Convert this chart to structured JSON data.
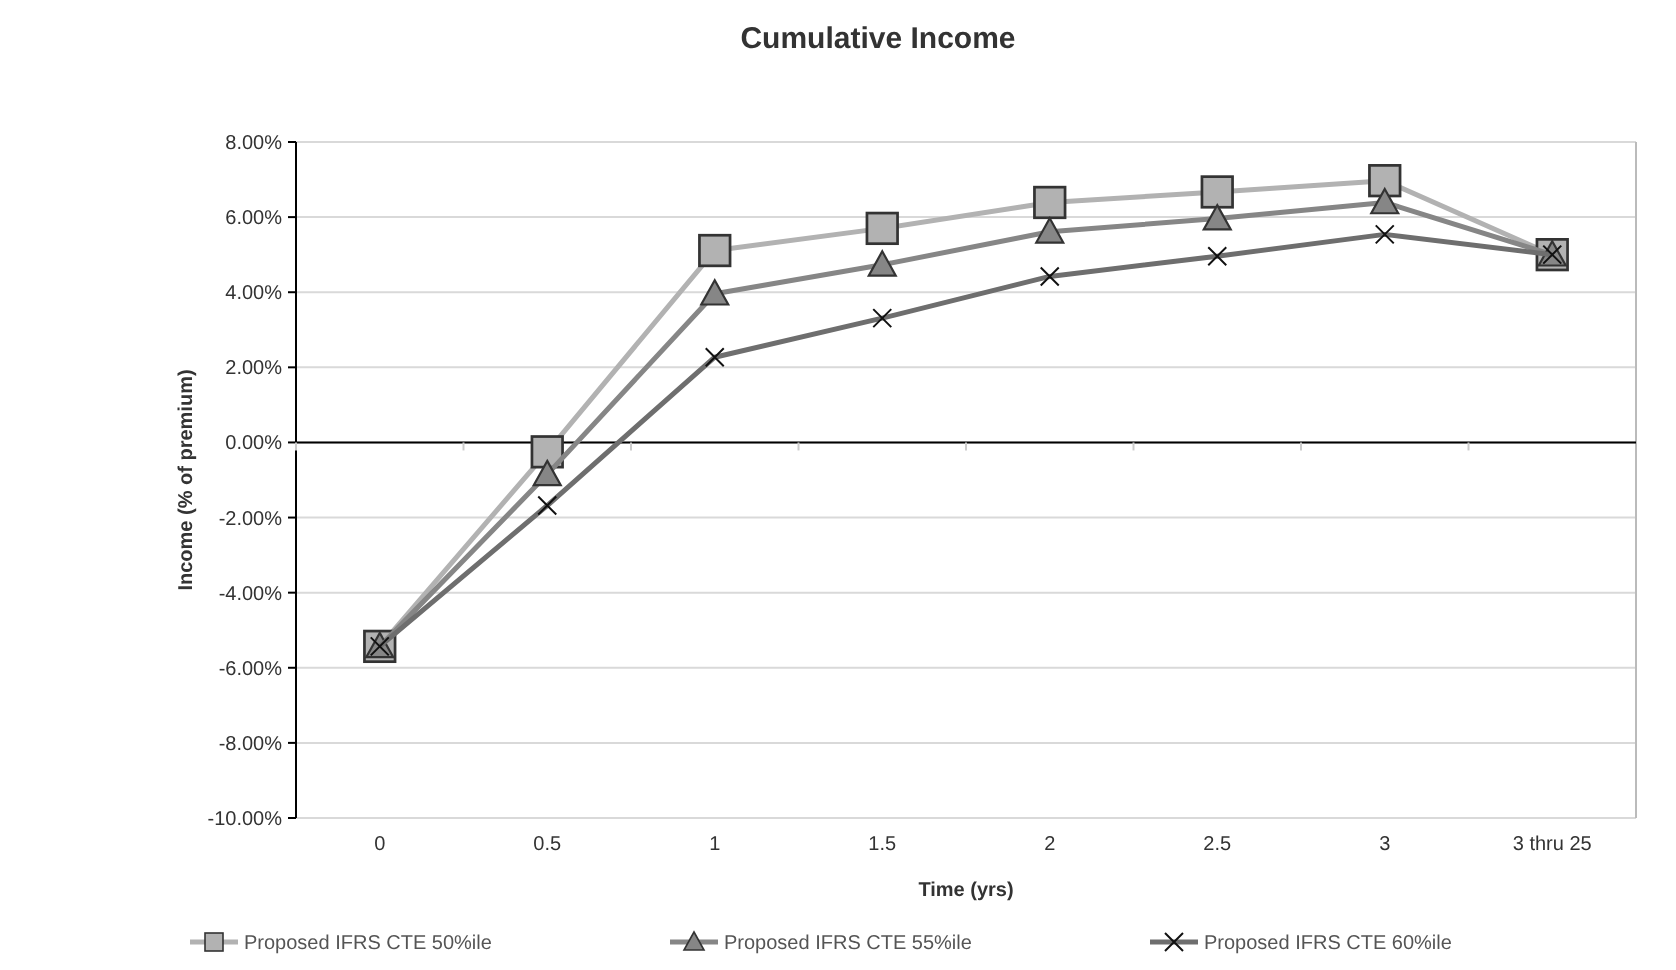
{
  "chart_data": {
    "type": "line",
    "title": "Cumulative Income",
    "xlabel": "Time (yrs)",
    "ylabel": "Income (% of premium)",
    "categories": [
      "0",
      "0.5",
      "1",
      "1.5",
      "2",
      "2.5",
      "3",
      "3 thru 25"
    ],
    "ylim": [
      -10,
      8
    ],
    "yticks": [
      {
        "value": -10,
        "label": "-10.00%"
      },
      {
        "value": -8,
        "label": "-8.00%"
      },
      {
        "value": -6,
        "label": "-6.00%"
      },
      {
        "value": -4,
        "label": "-4.00%"
      },
      {
        "value": -2,
        "label": "-2.00%"
      },
      {
        "value": 0,
        "label": "0.00%"
      },
      {
        "value": 2,
        "label": "2.00%"
      },
      {
        "value": 4,
        "label": "4.00%"
      },
      {
        "value": 6,
        "label": "6.00%"
      },
      {
        "value": 8,
        "label": "8.00%"
      }
    ],
    "grid": "y",
    "legend": "bottom",
    "series": [
      {
        "name": "Proposed IFRS CTE 50%ile",
        "color": "#b2b2b2",
        "marker": "square",
        "values": [
          -5.43,
          -0.25,
          5.11,
          5.7,
          6.39,
          6.67,
          6.97,
          5.0
        ]
      },
      {
        "name": "Proposed IFRS CTE 55%ile",
        "color": "#868686",
        "marker": "triangle",
        "values": [
          -5.43,
          -0.85,
          3.96,
          4.73,
          5.61,
          5.96,
          6.39,
          5.0
        ]
      },
      {
        "name": "Proposed IFRS CTE 60%ile",
        "color": "#6e6e6e",
        "marker": "cross",
        "values": [
          -5.43,
          -1.68,
          2.27,
          3.31,
          4.42,
          4.96,
          5.54,
          5.0
        ]
      }
    ]
  }
}
